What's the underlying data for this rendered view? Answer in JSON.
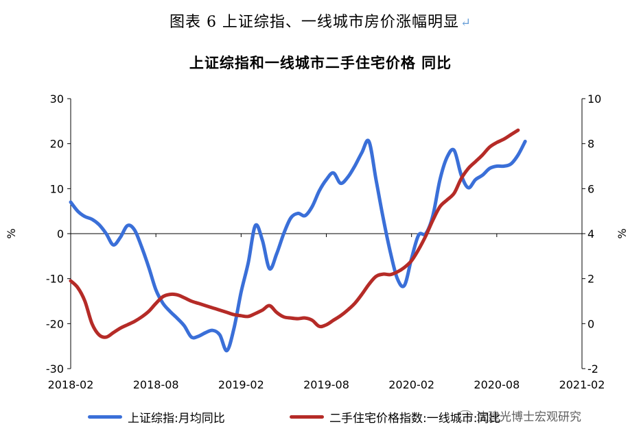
{
  "figure_caption": "图表 6  上证综指、一线城市房价涨幅明显",
  "caption_mark": "↵",
  "watermark": "沈建光博士宏观研究",
  "colors": {
    "series_blue": "#3a6fd8",
    "series_red": "#b52b27"
  },
  "chart_data": {
    "type": "line",
    "title": "上证综指和一线城市二手住宅价格 同比",
    "left_axis": {
      "label": "%",
      "ylim": [
        -30,
        30
      ],
      "ticks": [
        "30",
        "20",
        "10",
        "0",
        "-10",
        "-20",
        "-30"
      ]
    },
    "right_axis": {
      "label": "%",
      "ylim": [
        -2,
        10
      ],
      "ticks": [
        "10",
        "8",
        "6",
        "4",
        "2",
        "0",
        "-2"
      ]
    },
    "x_ticks": [
      "2018-02",
      "2018-08",
      "2019-02",
      "2019-08",
      "2020-02",
      "2020-08",
      "2021-02"
    ],
    "series": [
      {
        "name": "上证综指:月均同比",
        "axis": "left",
        "color": "#3a6fd8",
        "points": [
          [
            0,
            7
          ],
          [
            0.5,
            5
          ],
          [
            1,
            3.8
          ],
          [
            1.5,
            3.2
          ],
          [
            2,
            2
          ],
          [
            2.5,
            0
          ],
          [
            3,
            -2.5
          ],
          [
            3.5,
            -0.8
          ],
          [
            4,
            1.8
          ],
          [
            4.5,
            0.8
          ],
          [
            5,
            -3
          ],
          [
            5.5,
            -7.5
          ],
          [
            6,
            -12.5
          ],
          [
            6.5,
            -15.5
          ],
          [
            7,
            -17.3
          ],
          [
            7.5,
            -18.8
          ],
          [
            8,
            -20.5
          ],
          [
            8.5,
            -23
          ],
          [
            9,
            -22.8
          ],
          [
            9.5,
            -22
          ],
          [
            10,
            -21.5
          ],
          [
            10.5,
            -22.5
          ],
          [
            11,
            -26
          ],
          [
            11.5,
            -21
          ],
          [
            12,
            -13
          ],
          [
            12.5,
            -6.5
          ],
          [
            13,
            1.8
          ],
          [
            13.5,
            -1.5
          ],
          [
            14,
            -7.8
          ],
          [
            14.5,
            -4.5
          ],
          [
            15,
            0
          ],
          [
            15.5,
            3.5
          ],
          [
            16,
            4.5
          ],
          [
            16.5,
            4
          ],
          [
            17,
            6
          ],
          [
            17.5,
            9.5
          ],
          [
            18,
            12
          ],
          [
            18.5,
            13.5
          ],
          [
            19,
            11.2
          ],
          [
            19.5,
            12.5
          ],
          [
            20,
            15
          ],
          [
            20.5,
            18
          ],
          [
            21,
            20.5
          ],
          [
            21.5,
            12
          ],
          [
            22,
            3.5
          ],
          [
            22.5,
            -4
          ],
          [
            23,
            -10
          ],
          [
            23.5,
            -11.5
          ],
          [
            24,
            -5.5
          ],
          [
            24.5,
            -0.3
          ],
          [
            25,
            0
          ],
          [
            25.5,
            4
          ],
          [
            26,
            12
          ],
          [
            26.5,
            17
          ],
          [
            27,
            18.5
          ],
          [
            27.5,
            13
          ],
          [
            28,
            10.2
          ],
          [
            28.5,
            12
          ],
          [
            29,
            13
          ],
          [
            29.5,
            14.5
          ],
          [
            30,
            15
          ],
          [
            30.5,
            15
          ],
          [
            31,
            15.5
          ],
          [
            31.5,
            17.5
          ],
          [
            32,
            20.5
          ]
        ]
      },
      {
        "name": "二手住宅价格指数:一线城市:同比",
        "axis": "right",
        "color": "#b52b27",
        "points": [
          [
            0,
            1.9
          ],
          [
            0.5,
            1.6
          ],
          [
            1,
            1
          ],
          [
            1.5,
            0
          ],
          [
            2,
            -0.5
          ],
          [
            2.5,
            -0.6
          ],
          [
            3,
            -0.4
          ],
          [
            3.5,
            -0.2
          ],
          [
            4,
            -0.05
          ],
          [
            4.5,
            0.1
          ],
          [
            5,
            0.3
          ],
          [
            5.5,
            0.55
          ],
          [
            6,
            0.9
          ],
          [
            6.5,
            1.2
          ],
          [
            7,
            1.3
          ],
          [
            7.5,
            1.28
          ],
          [
            8,
            1.15
          ],
          [
            8.5,
            1
          ],
          [
            9,
            0.9
          ],
          [
            9.5,
            0.8
          ],
          [
            10,
            0.7
          ],
          [
            10.5,
            0.6
          ],
          [
            11,
            0.5
          ],
          [
            11.5,
            0.4
          ],
          [
            12,
            0.35
          ],
          [
            12.5,
            0.32
          ],
          [
            13,
            0.45
          ],
          [
            13.5,
            0.6
          ],
          [
            14,
            0.8
          ],
          [
            14.5,
            0.5
          ],
          [
            15,
            0.3
          ],
          [
            15.5,
            0.25
          ],
          [
            16,
            0.22
          ],
          [
            16.5,
            0.25
          ],
          [
            17,
            0.15
          ],
          [
            17.5,
            -0.12
          ],
          [
            18,
            -0.05
          ],
          [
            18.5,
            0.15
          ],
          [
            19,
            0.35
          ],
          [
            19.5,
            0.6
          ],
          [
            20,
            0.9
          ],
          [
            20.5,
            1.3
          ],
          [
            21,
            1.75
          ],
          [
            21.5,
            2.1
          ],
          [
            22,
            2.2
          ],
          [
            22.5,
            2.18
          ],
          [
            23,
            2.3
          ],
          [
            23.5,
            2.5
          ],
          [
            24,
            2.8
          ],
          [
            24.5,
            3.3
          ],
          [
            25,
            3.9
          ],
          [
            25.5,
            4.6
          ],
          [
            26,
            5.2
          ],
          [
            26.5,
            5.5
          ],
          [
            27,
            5.8
          ],
          [
            27.5,
            6.45
          ],
          [
            28,
            6.9
          ],
          [
            28.5,
            7.2
          ],
          [
            29,
            7.5
          ],
          [
            29.5,
            7.85
          ],
          [
            30,
            8.05
          ],
          [
            30.5,
            8.2
          ],
          [
            31,
            8.4
          ],
          [
            31.5,
            8.6
          ]
        ]
      }
    ]
  }
}
